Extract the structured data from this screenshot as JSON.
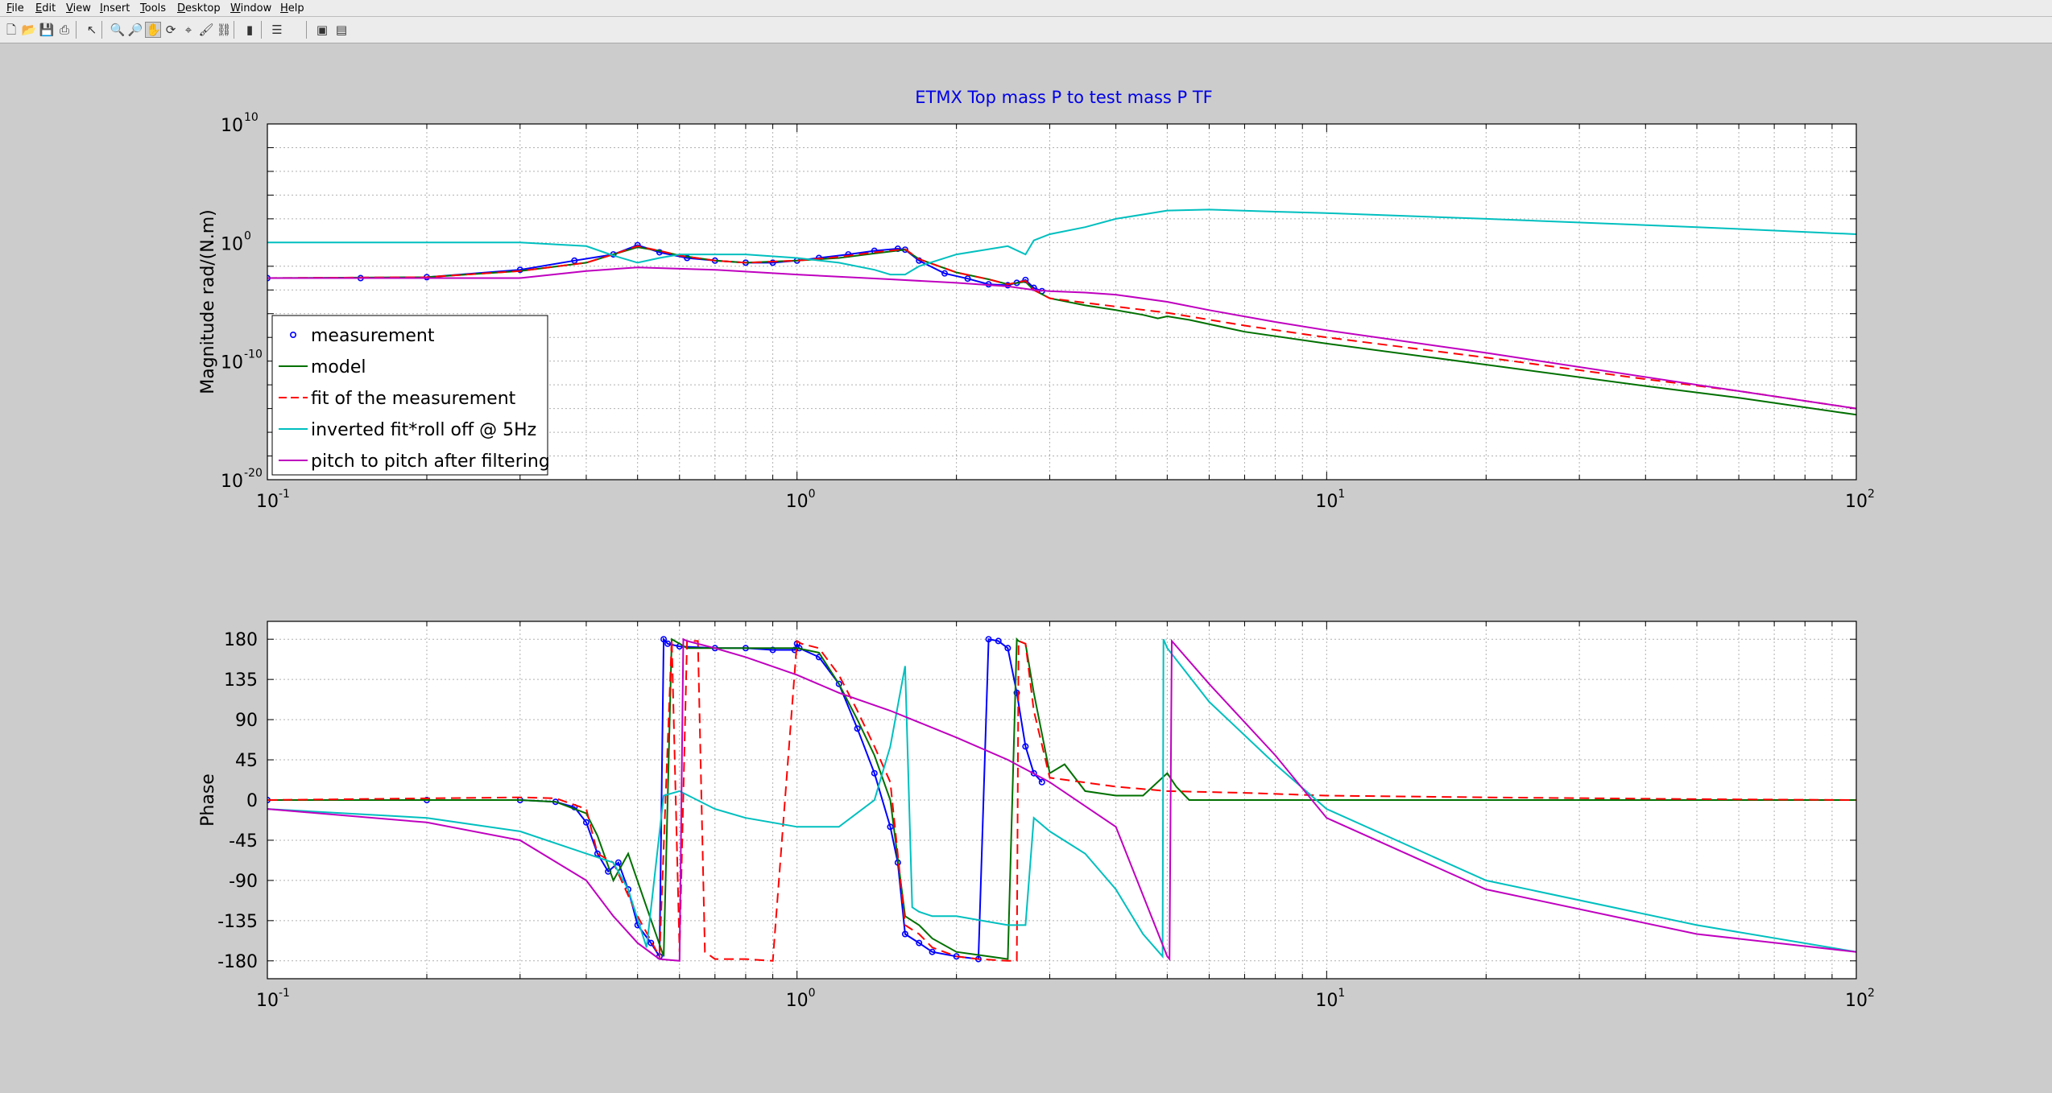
{
  "menu": [
    "File",
    "Edit",
    "View",
    "Insert",
    "Tools",
    "Desktop",
    "Window",
    "Help"
  ],
  "toolbar": {
    "icons": [
      "new-figure-icon",
      "open-file-icon",
      "save-icon",
      "print-icon",
      "pointer-icon",
      "zoom-in-icon",
      "zoom-out-icon",
      "pan-icon",
      "rotate-3d-icon",
      "data-cursor-icon",
      "brush-icon",
      "link-icon",
      "insert-colorbar-icon",
      "insert-legend-icon",
      "hide-plot-tools-icon",
      "show-plot-tools-icon"
    ]
  },
  "colors": {
    "measurement": "#0000ff",
    "model": "#007000",
    "fit": "#ff0000",
    "inverted": "#00bfbf",
    "pitch": "#bf00bf"
  },
  "chart_data": [
    {
      "type": "line",
      "title": "ETMX Top mass P to test mass P TF",
      "xlabel": "",
      "ylabel": "Magnitude rad/(N.m)",
      "xscale": "log",
      "yscale": "log",
      "xlim": [
        0.1,
        100
      ],
      "ylim": [
        1e-20,
        10000000000.0
      ],
      "xticks": [
        {
          "base": "10",
          "exp": "-1"
        },
        {
          "base": "10",
          "exp": "0"
        },
        {
          "base": "10",
          "exp": "1"
        },
        {
          "base": "10",
          "exp": "2"
        }
      ],
      "yticks": [
        {
          "base": "10",
          "exp": "10",
          "v": 10000000000.0
        },
        {
          "base": "10",
          "exp": "0",
          "v": 1
        },
        {
          "base": "10",
          "exp": "-10",
          "v": 1e-10
        },
        {
          "base": "10",
          "exp": "-20",
          "v": 1e-20
        }
      ],
      "grid": true,
      "legend_position": "lower-left",
      "legend": [
        "measurement",
        "model",
        "fit of the measurement",
        "inverted fit*roll off @ 5Hz",
        "pitch to pitch after filtering"
      ],
      "series": [
        {
          "name": "measurement",
          "x": [
            0.1,
            0.15,
            0.2,
            0.3,
            0.38,
            0.45,
            0.5,
            0.55,
            0.62,
            0.7,
            0.8,
            0.9,
            1.0,
            1.1,
            1.25,
            1.4,
            1.55,
            1.6,
            1.7,
            1.9,
            2.1,
            2.3,
            2.5,
            2.6,
            2.7,
            2.8,
            2.9
          ],
          "y": [
            0.001,
            0.001,
            0.0012,
            0.005,
            0.03,
            0.1,
            0.6,
            0.15,
            0.05,
            0.03,
            0.02,
            0.02,
            0.03,
            0.05,
            0.1,
            0.2,
            0.3,
            0.25,
            0.03,
            0.0025,
            0.0009,
            0.0003,
            0.00025,
            0.0004,
            0.0007,
            0.00015,
            8e-05
          ]
        },
        {
          "name": "model",
          "x": [
            0.1,
            0.2,
            0.3,
            0.4,
            0.45,
            0.5,
            0.55,
            0.6,
            0.7,
            0.8,
            1.0,
            1.2,
            1.4,
            1.6,
            1.7,
            2.0,
            2.3,
            2.5,
            2.7,
            2.8,
            3.0,
            3.5,
            4.0,
            4.5,
            4.8,
            5.0,
            5.5,
            7,
            10,
            20,
            40,
            60,
            100
          ],
          "y": [
            0.001,
            0.0012,
            0.004,
            0.02,
            0.1,
            0.4,
            0.2,
            0.08,
            0.03,
            0.02,
            0.03,
            0.05,
            0.12,
            0.25,
            0.04,
            0.003,
            0.0008,
            0.0003,
            0.0005,
            0.0001,
            2e-05,
            5e-06,
            2e-06,
            8e-07,
            4e-07,
            6e-07,
            3e-07,
            3e-08,
            3e-09,
            5e-11,
            8e-13,
            8e-14,
            3e-15
          ]
        },
        {
          "name": "fit of the measurement",
          "x": [
            0.1,
            0.2,
            0.3,
            0.4,
            0.45,
            0.5,
            0.55,
            0.6,
            0.7,
            0.8,
            1.0,
            1.2,
            1.4,
            1.6,
            1.7,
            2.0,
            2.3,
            2.5,
            2.7,
            2.8,
            3.0,
            4,
            5,
            7,
            10,
            20,
            40,
            60,
            100
          ],
          "y": [
            0.001,
            0.0012,
            0.004,
            0.02,
            0.1,
            0.5,
            0.2,
            0.08,
            0.03,
            0.02,
            0.03,
            0.06,
            0.15,
            0.28,
            0.04,
            0.003,
            0.0008,
            0.0003,
            0.0006,
            0.0001,
            2e-05,
            4e-06,
            1.2e-06,
            1e-07,
            1e-08,
            2e-10,
            3e-12,
            3e-13,
            1e-14
          ]
        },
        {
          "name": "inverted fit*roll off @ 5Hz",
          "x": [
            0.1,
            0.2,
            0.3,
            0.4,
            0.45,
            0.5,
            0.55,
            0.6,
            0.8,
            1.0,
            1.2,
            1.4,
            1.5,
            1.6,
            1.7,
            2.0,
            2.5,
            2.7,
            2.8,
            3.0,
            3.5,
            4,
            5,
            6,
            8,
            10,
            20,
            50,
            100
          ],
          "y": [
            1,
            1,
            1,
            0.5,
            0.08,
            0.02,
            0.05,
            0.1,
            0.1,
            0.05,
            0.02,
            0.005,
            0.002,
            0.002,
            0.01,
            0.1,
            0.5,
            0.1,
            1.5,
            5,
            20,
            100,
            500,
            600,
            400,
            300,
            100,
            20,
            5
          ]
        },
        {
          "name": "pitch to pitch after filtering",
          "x": [
            0.1,
            0.2,
            0.3,
            0.4,
            0.5,
            0.7,
            1.0,
            1.5,
            2.0,
            2.5,
            2.8,
            3.0,
            3.5,
            4,
            5,
            6,
            8,
            10,
            20,
            50,
            100
          ],
          "y": [
            0.001,
            0.001,
            0.001,
            0.004,
            0.008,
            0.005,
            0.002,
            0.0008,
            0.0004,
            0.0002,
            0.0001,
            8e-05,
            6e-05,
            4e-05,
            1e-05,
            2e-06,
            2e-07,
            4e-08,
            5e-10,
            1e-12,
            1e-14
          ]
        }
      ]
    },
    {
      "type": "line",
      "title": "",
      "xlabel": "",
      "ylabel": "Phase",
      "xscale": "log",
      "xlim": [
        0.1,
        100
      ],
      "ylim": [
        -200,
        200
      ],
      "xticks": [
        {
          "base": "10",
          "exp": "-1"
        },
        {
          "base": "10",
          "exp": "0"
        },
        {
          "base": "10",
          "exp": "1"
        },
        {
          "base": "10",
          "exp": "2"
        }
      ],
      "yticks": [
        180,
        135,
        90,
        45,
        0,
        -45,
        -90,
        -135,
        -180
      ],
      "grid": true,
      "series": [
        {
          "name": "measurement",
          "x": [
            0.1,
            0.2,
            0.3,
            0.35,
            0.38,
            0.4,
            0.42,
            0.44,
            0.46,
            0.48,
            0.5,
            0.53,
            0.55,
            0.56,
            0.57,
            0.6,
            0.7,
            0.8,
            0.9,
            0.99,
            1.0,
            1.01,
            1.1,
            1.2,
            1.3,
            1.4,
            1.5,
            1.55,
            1.6,
            1.7,
            1.8,
            2.0,
            2.2,
            2.3,
            2.4,
            2.5,
            2.6,
            2.7,
            2.8,
            2.9
          ],
          "y": [
            0,
            0,
            0,
            -2,
            -8,
            -25,
            -60,
            -80,
            -70,
            -100,
            -140,
            -160,
            -175,
            180,
            175,
            172,
            170,
            170,
            168,
            168,
            175,
            170,
            160,
            130,
            80,
            30,
            -30,
            -70,
            -150,
            -160,
            -170,
            -175,
            -178,
            180,
            178,
            170,
            120,
            60,
            30,
            20
          ]
        },
        {
          "name": "model",
          "x": [
            0.1,
            0.2,
            0.3,
            0.35,
            0.4,
            0.42,
            0.45,
            0.48,
            0.52,
            0.56,
            0.58,
            0.6,
            0.62,
            0.7,
            0.8,
            1.0,
            1.1,
            1.2,
            1.3,
            1.4,
            1.5,
            1.6,
            1.7,
            1.8,
            2.0,
            2.3,
            2.5,
            2.6,
            2.62,
            2.7,
            2.8,
            3.0,
            3.2,
            3.5,
            4,
            4.5,
            5,
            5.2,
            5.5,
            7,
            10,
            20,
            50,
            100
          ],
          "y": [
            0,
            0,
            0,
            -2,
            -15,
            -40,
            -90,
            -60,
            -120,
            -175,
            180,
            175,
            170,
            170,
            170,
            170,
            165,
            130,
            90,
            50,
            0,
            -130,
            -140,
            -155,
            -170,
            -175,
            -178,
            180,
            178,
            175,
            120,
            30,
            40,
            10,
            5,
            5,
            30,
            15,
            0,
            0,
            0,
            0,
            0,
            0
          ]
        },
        {
          "name": "fit of the measurement",
          "x": [
            0.1,
            0.3,
            0.35,
            0.4,
            0.42,
            0.45,
            0.5,
            0.55,
            0.58,
            0.6,
            0.62,
            0.65,
            0.67,
            0.7,
            0.8,
            0.9,
            1.0,
            1.02,
            1.1,
            1.2,
            1.3,
            1.4,
            1.5,
            1.6,
            1.7,
            1.8,
            2.0,
            2.2,
            2.5,
            2.6,
            2.62,
            2.7,
            2.8,
            3.0,
            4,
            5,
            7,
            10,
            20,
            50,
            100
          ],
          "y": [
            0,
            3,
            2,
            -10,
            -60,
            -70,
            -130,
            -175,
            180,
            -170,
            178,
            178,
            -170,
            -178,
            -178,
            -180,
            178,
            175,
            170,
            140,
            100,
            60,
            20,
            -140,
            -150,
            -165,
            -175,
            -178,
            -180,
            -180,
            178,
            175,
            100,
            25,
            15,
            10,
            8,
            5,
            3,
            1,
            0
          ]
        },
        {
          "name": "inverted fit*roll off @ 5Hz",
          "x": [
            0.1,
            0.2,
            0.3,
            0.4,
            0.45,
            0.48,
            0.52,
            0.56,
            0.6,
            0.7,
            0.8,
            1.0,
            1.2,
            1.4,
            1.5,
            1.6,
            1.65,
            1.7,
            1.8,
            2.0,
            2.5,
            2.7,
            2.8,
            3.0,
            3.5,
            4,
            4.5,
            4.9,
            4.92,
            5.0,
            6,
            8,
            10,
            20,
            50,
            100
          ],
          "y": [
            -10,
            -20,
            -35,
            -60,
            -70,
            -100,
            -165,
            5,
            10,
            -10,
            -20,
            -30,
            -30,
            0,
            60,
            150,
            -120,
            -125,
            -130,
            -130,
            -140,
            -140,
            -20,
            -35,
            -60,
            -100,
            -150,
            -175,
            180,
            170,
            110,
            40,
            -10,
            -90,
            -140,
            -170
          ]
        },
        {
          "name": "pitch to pitch after filtering",
          "x": [
            0.1,
            0.2,
            0.3,
            0.4,
            0.45,
            0.5,
            0.55,
            0.6,
            0.61,
            0.62,
            0.7,
            0.8,
            1.0,
            1.2,
            1.5,
            2.0,
            2.5,
            3.0,
            4,
            5,
            5.05,
            5.1,
            6,
            8,
            10,
            20,
            50,
            100
          ],
          "y": [
            -10,
            -25,
            -45,
            -90,
            -130,
            -160,
            -178,
            -180,
            180,
            178,
            170,
            160,
            140,
            120,
            100,
            70,
            45,
            20,
            -30,
            -175,
            -178,
            178,
            130,
            50,
            -20,
            -100,
            -150,
            -170
          ]
        }
      ]
    }
  ]
}
